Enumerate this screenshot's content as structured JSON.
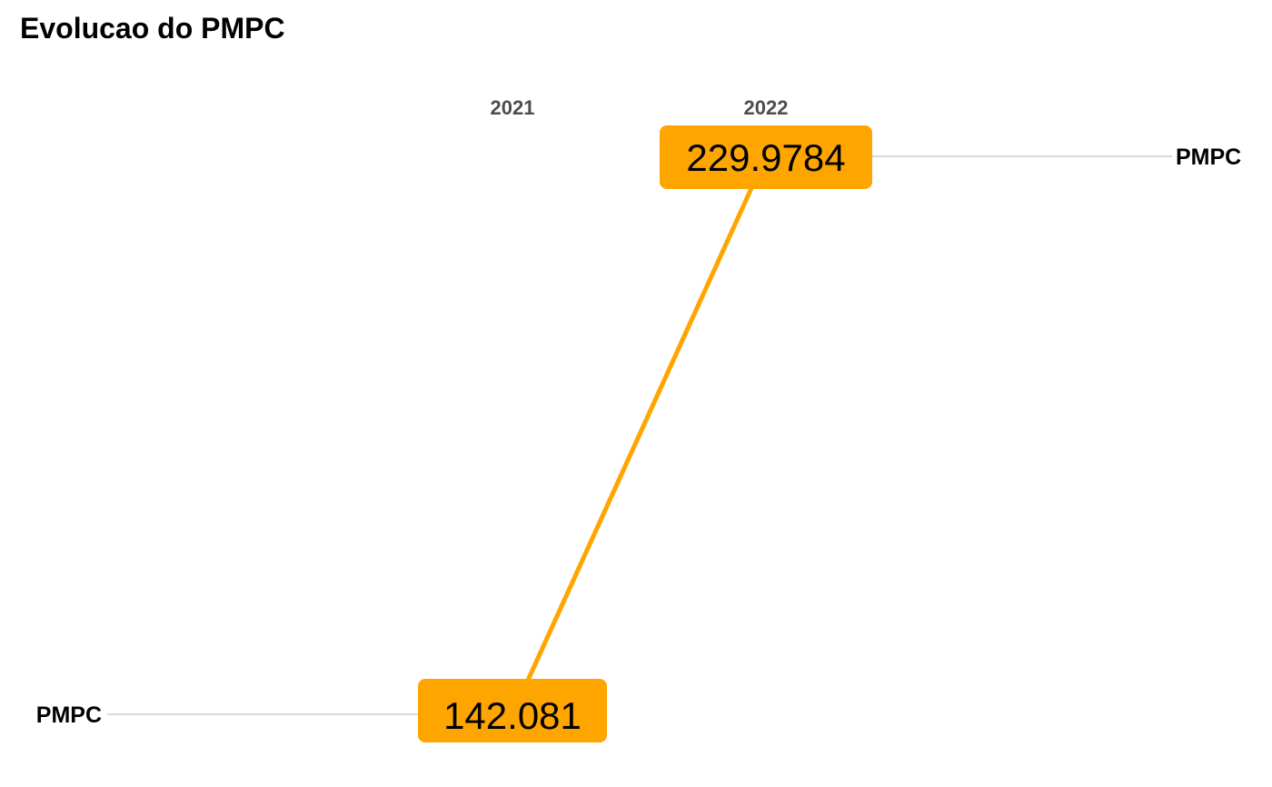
{
  "chart_data": {
    "type": "line",
    "title": "Evolucao do PMPC",
    "categories": [
      "2021",
      "2022"
    ],
    "series": [
      {
        "name": "PMPC",
        "values": [
          142.081,
          229.9784
        ],
        "value_labels": [
          "142.081",
          "229.9784"
        ]
      }
    ],
    "left_label": "PMPC",
    "right_label": "PMPC",
    "line_color": "#ffa500",
    "label_box_color": "#ffa500",
    "guide_line_color": "#d9d9d9"
  }
}
